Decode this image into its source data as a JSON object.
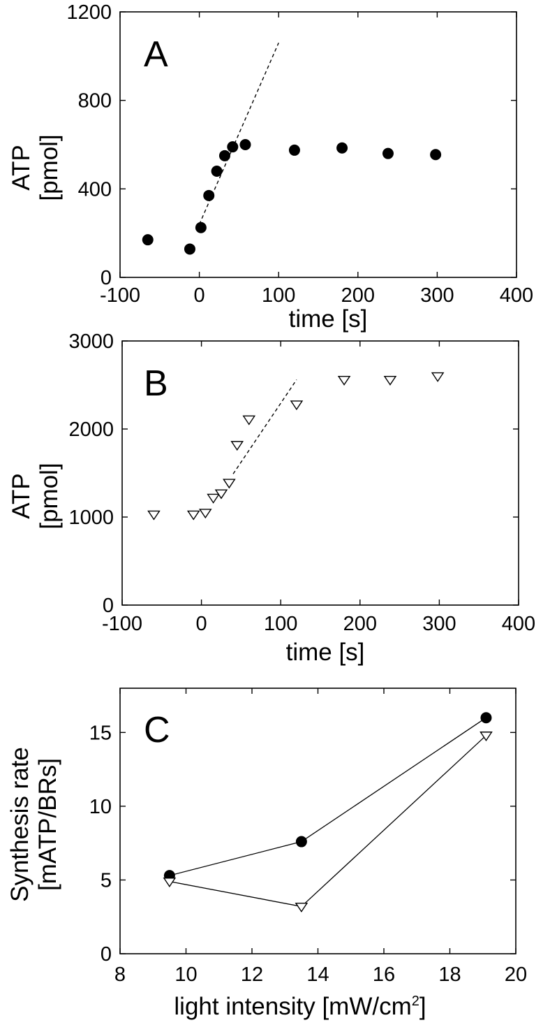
{
  "chart_data": [
    {
      "panel": "A",
      "type": "scatter",
      "xlabel": "time [s]",
      "ylabel": [
        "ATP",
        "[pmol]"
      ],
      "xlim": [
        -100,
        400
      ],
      "ylim": [
        0,
        1200
      ],
      "xticks": [
        -100,
        0,
        100,
        200,
        300,
        400
      ],
      "yticks": [
        0,
        400,
        800,
        1200
      ],
      "grid": false,
      "series": [
        {
          "marker": "filled-circle",
          "x": [
            -65,
            -12,
            2,
            12,
            22,
            32,
            42,
            58,
            120,
            180,
            238,
            298
          ],
          "y": [
            170,
            128,
            225,
            370,
            480,
            550,
            590,
            600,
            575,
            585,
            560,
            555
          ]
        }
      ],
      "fit_line": {
        "style": "dashed",
        "x": [
          0,
          100
        ],
        "y": [
          240,
          1060
        ]
      }
    },
    {
      "panel": "B",
      "type": "scatter",
      "xlabel": "time [s]",
      "ylabel": [
        "ATP",
        "[pmol]"
      ],
      "xlim": [
        -100,
        400
      ],
      "ylim": [
        0,
        3000
      ],
      "xticks": [
        -100,
        0,
        100,
        200,
        300,
        400
      ],
      "yticks": [
        0,
        1000,
        2000,
        3000
      ],
      "grid": false,
      "series": [
        {
          "marker": "open-triangle-down",
          "x": [
            -60,
            -10,
            5,
            15,
            25,
            35,
            45,
            60,
            120,
            180,
            238,
            298
          ],
          "y": [
            1030,
            1030,
            1050,
            1220,
            1270,
            1390,
            1820,
            2110,
            2280,
            2560,
            2560,
            2600
          ]
        }
      ],
      "fit_line": {
        "style": "dashed",
        "x": [
          40,
          120
        ],
        "y": [
          1490,
          2560
        ]
      }
    },
    {
      "panel": "C",
      "type": "line",
      "xlabel": "light intensity [mW/cm",
      "xlabel_superscript": "2",
      "xlabel_suffix": "]",
      "ylabel": [
        "Synthesis rate",
        "[mATP/BRs]"
      ],
      "xlim": [
        8,
        20
      ],
      "ylim": [
        0,
        18
      ],
      "xticks": [
        8,
        10,
        12,
        14,
        16,
        18,
        20
      ],
      "yticks": [
        0,
        5,
        10,
        15
      ],
      "grid": false,
      "series": [
        {
          "marker": "filled-circle",
          "x": [
            9.5,
            13.5,
            19.1
          ],
          "y": [
            5.3,
            7.6,
            16.0
          ]
        },
        {
          "marker": "open-triangle-down",
          "x": [
            9.5,
            13.5,
            19.1
          ],
          "y": [
            4.9,
            3.2,
            14.8
          ]
        }
      ]
    }
  ],
  "panel_letters": [
    "A",
    "B",
    "C"
  ]
}
